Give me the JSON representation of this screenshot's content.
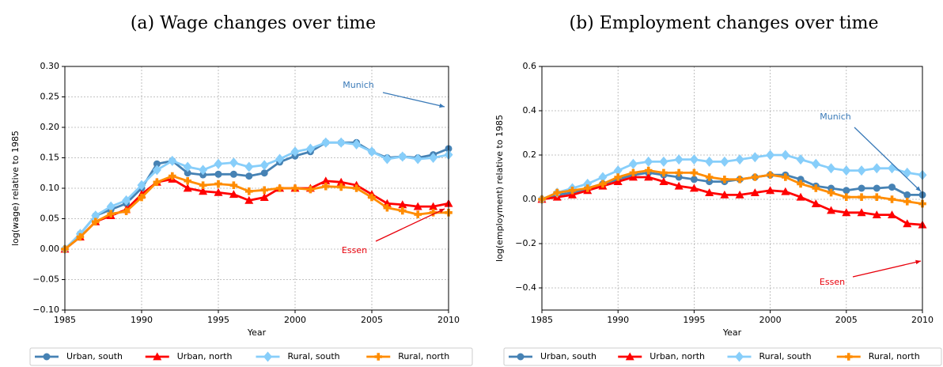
{
  "chart_data": [
    {
      "type": "line",
      "title": "(a) Wage changes over time",
      "xlabel": "Year",
      "ylabel": "log(wage) relative to 1985",
      "x": [
        1985,
        1986,
        1987,
        1988,
        1989,
        1990,
        1991,
        1992,
        1993,
        1994,
        1995,
        1996,
        1997,
        1998,
        1999,
        2000,
        2001,
        2002,
        2003,
        2004,
        2005,
        2006,
        2007,
        2008,
        2009,
        2010
      ],
      "xlim": [
        1985,
        2010
      ],
      "xticks": [
        1985,
        1990,
        1995,
        2000,
        2005,
        2010
      ],
      "ylim": [
        -0.1,
        0.3
      ],
      "yticks": [
        {
          "value": -0.1,
          "label": "−0.10"
        },
        {
          "value": -0.05,
          "label": "−0.05"
        },
        {
          "value": 0,
          "label": "0.00"
        },
        {
          "value": 0.05,
          "label": "0.05"
        },
        {
          "value": 0.1,
          "label": "0.10"
        },
        {
          "value": 0.15,
          "label": "0.15"
        },
        {
          "value": 0.2,
          "label": "0.20"
        },
        {
          "value": 0.25,
          "label": "0.25"
        },
        {
          "value": 0.3,
          "label": "0.30"
        }
      ],
      "grid": true,
      "legend": "bottom",
      "series": [
        {
          "name": "Urban, south",
          "color": "#4682b4",
          "marker": "circle",
          "values": [
            0,
            0.025,
            0.055,
            0.065,
            0.075,
            0.1,
            0.14,
            0.145,
            0.125,
            0.122,
            0.123,
            0.123,
            0.12,
            0.125,
            0.143,
            0.153,
            0.16,
            0.175,
            0.175,
            0.175,
            0.16,
            0.15,
            0.152,
            0.15,
            0.155,
            0.165
          ]
        },
        {
          "name": "Urban, north",
          "color": "#ff0000",
          "marker": "triangle",
          "values": [
            0,
            0.02,
            0.045,
            0.055,
            0.065,
            0.09,
            0.11,
            0.115,
            0.1,
            0.095,
            0.093,
            0.09,
            0.08,
            0.085,
            0.1,
            0.1,
            0.1,
            0.112,
            0.11,
            0.105,
            0.09,
            0.075,
            0.073,
            0.07,
            0.07,
            0.075
          ]
        },
        {
          "name": "Rural, south",
          "color": "#87cefa",
          "marker": "diamond",
          "values": [
            0,
            0.025,
            0.055,
            0.07,
            0.08,
            0.105,
            0.13,
            0.145,
            0.135,
            0.13,
            0.14,
            0.142,
            0.135,
            0.138,
            0.148,
            0.16,
            0.165,
            0.175,
            0.175,
            0.172,
            0.16,
            0.148,
            0.152,
            0.148,
            0.15,
            0.155
          ]
        },
        {
          "name": "Rural, north",
          "color": "#ff8c00",
          "marker": "plus",
          "values": [
            0,
            0.02,
            0.045,
            0.058,
            0.062,
            0.085,
            0.11,
            0.12,
            0.112,
            0.105,
            0.107,
            0.105,
            0.095,
            0.097,
            0.1,
            0.1,
            0.098,
            0.103,
            0.102,
            0.1,
            0.085,
            0.068,
            0.063,
            0.057,
            0.06,
            0.06
          ]
        }
      ],
      "annotations": [
        {
          "text": "Munich",
          "color": "#3a7ab8"
        },
        {
          "text": "Essen",
          "color": "#e8000b"
        }
      ]
    },
    {
      "type": "line",
      "title": "(b) Employment changes over time",
      "xlabel": "Year",
      "ylabel": "log(employment) relative to 1985",
      "x": [
        1985,
        1986,
        1987,
        1988,
        1989,
        1990,
        1991,
        1992,
        1993,
        1994,
        1995,
        1996,
        1997,
        1998,
        1999,
        2000,
        2001,
        2002,
        2003,
        2004,
        2005,
        2006,
        2007,
        2008,
        2009,
        2010
      ],
      "xlim": [
        1985,
        2010
      ],
      "xticks": [
        1985,
        1990,
        1995,
        2000,
        2005,
        2010
      ],
      "ylim": [
        -0.5,
        0.6
      ],
      "yticks": [
        {
          "value": -0.4,
          "label": "−0.4"
        },
        {
          "value": -0.2,
          "label": "−0.2"
        },
        {
          "value": 0,
          "label": "0.0"
        },
        {
          "value": 0.2,
          "label": "0.2"
        },
        {
          "value": 0.4,
          "label": "0.4"
        },
        {
          "value": 0.6,
          "label": "0.6"
        }
      ],
      "grid": true,
      "legend": "bottom",
      "series": [
        {
          "name": "Urban, south",
          "color": "#4682b4",
          "marker": "circle",
          "values": [
            0,
            0.02,
            0.03,
            0.05,
            0.07,
            0.09,
            0.11,
            0.12,
            0.11,
            0.1,
            0.09,
            0.08,
            0.08,
            0.09,
            0.1,
            0.11,
            0.11,
            0.09,
            0.06,
            0.05,
            0.04,
            0.05,
            0.05,
            0.055,
            0.02,
            0.02
          ]
        },
        {
          "name": "Urban, north",
          "color": "#ff0000",
          "marker": "triangle",
          "values": [
            0,
            0.01,
            0.02,
            0.04,
            0.06,
            0.08,
            0.1,
            0.1,
            0.08,
            0.06,
            0.05,
            0.03,
            0.02,
            0.02,
            0.03,
            0.04,
            0.035,
            0.01,
            -0.02,
            -0.05,
            -0.06,
            -0.06,
            -0.07,
            -0.07,
            -0.11,
            -0.115
          ]
        },
        {
          "name": "Rural, south",
          "color": "#87cefa",
          "marker": "diamond",
          "values": [
            0,
            0.03,
            0.05,
            0.07,
            0.1,
            0.13,
            0.16,
            0.17,
            0.17,
            0.18,
            0.18,
            0.17,
            0.17,
            0.18,
            0.19,
            0.2,
            0.2,
            0.18,
            0.16,
            0.14,
            0.13,
            0.13,
            0.14,
            0.14,
            0.12,
            0.11
          ]
        },
        {
          "name": "Rural, north",
          "color": "#ff8c00",
          "marker": "plus",
          "values": [
            0,
            0.03,
            0.04,
            0.05,
            0.07,
            0.1,
            0.12,
            0.13,
            0.12,
            0.12,
            0.12,
            0.1,
            0.09,
            0.09,
            0.1,
            0.11,
            0.1,
            0.07,
            0.05,
            0.03,
            0.01,
            0.01,
            0.01,
            0,
            -0.01,
            -0.02
          ]
        }
      ],
      "annotations": [
        {
          "text": "Munich",
          "color": "#3a7ab8"
        },
        {
          "text": "Essen",
          "color": "#e8000b"
        }
      ]
    }
  ]
}
